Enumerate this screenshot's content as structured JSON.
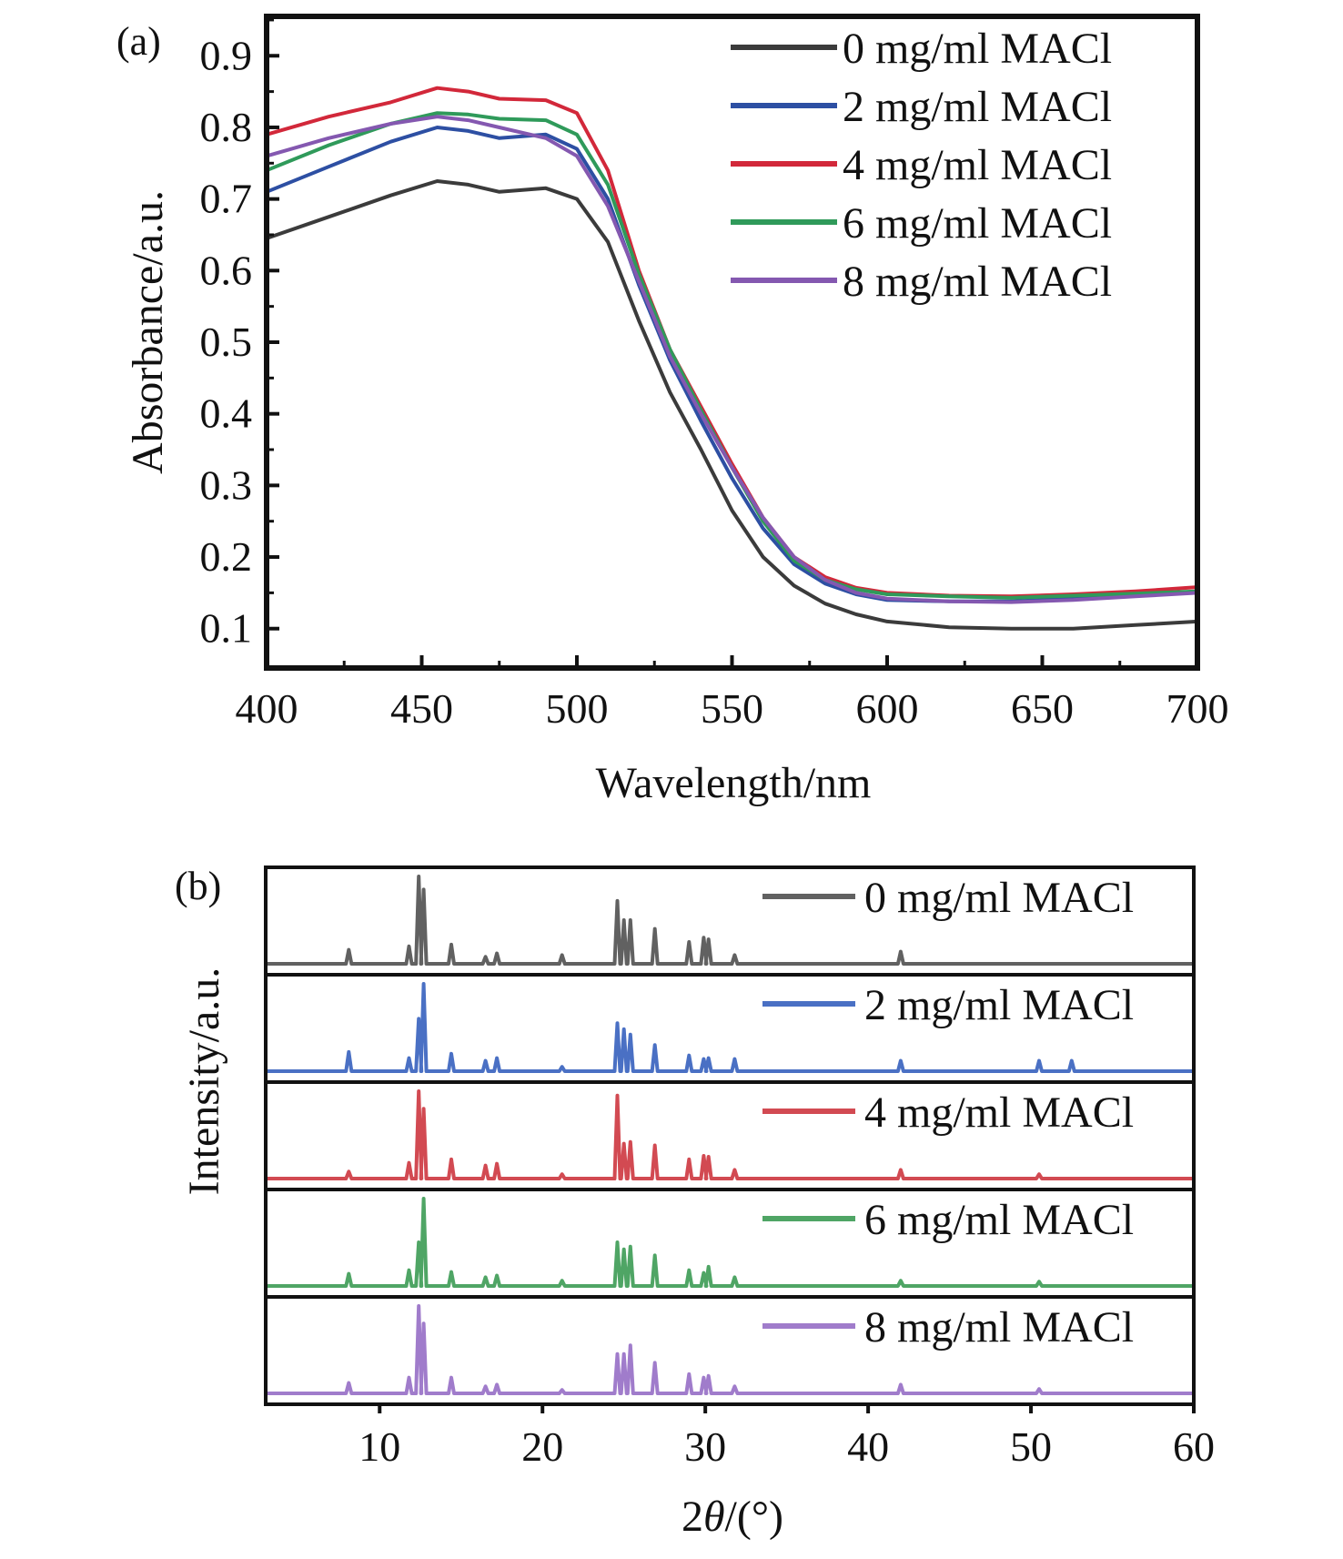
{
  "chart_data": [
    {
      "type": "line",
      "panel_label": "(a)",
      "xlabel": "Wavelength/nm",
      "ylabel": "Absorbance/a.u.",
      "xlim": [
        400,
        700
      ],
      "ylim": [
        0.045,
        0.955
      ],
      "x_ticks": [
        "400",
        "450",
        "500",
        "550",
        "600",
        "650",
        "700"
      ],
      "y_ticks": [
        "0.1",
        "0.2",
        "0.3",
        "0.4",
        "0.5",
        "0.6",
        "0.7",
        "0.8",
        "0.9"
      ],
      "legend_position": "top-right",
      "grid": false,
      "x": [
        400,
        420,
        440,
        455,
        465,
        475,
        490,
        500,
        510,
        520,
        530,
        540,
        550,
        560,
        570,
        580,
        590,
        600,
        620,
        640,
        660,
        680,
        700
      ],
      "series": [
        {
          "name": "0 mg/ml MACl",
          "color": "#3b3b3b",
          "values": [
            0.645,
            0.675,
            0.705,
            0.725,
            0.72,
            0.71,
            0.715,
            0.7,
            0.64,
            0.53,
            0.43,
            0.35,
            0.265,
            0.2,
            0.16,
            0.135,
            0.12,
            0.11,
            0.102,
            0.1,
            0.1,
            0.105,
            0.11
          ]
        },
        {
          "name": "2 mg/ml MACl",
          "color": "#2d4fa3",
          "values": [
            0.71,
            0.745,
            0.78,
            0.8,
            0.795,
            0.785,
            0.79,
            0.77,
            0.7,
            0.58,
            0.475,
            0.39,
            0.31,
            0.24,
            0.19,
            0.163,
            0.148,
            0.14,
            0.138,
            0.138,
            0.142,
            0.146,
            0.152
          ]
        },
        {
          "name": "4 mg/ml MACl",
          "color": "#d2283a",
          "values": [
            0.79,
            0.815,
            0.835,
            0.855,
            0.85,
            0.84,
            0.838,
            0.82,
            0.74,
            0.6,
            0.49,
            0.41,
            0.33,
            0.255,
            0.2,
            0.172,
            0.157,
            0.15,
            0.146,
            0.145,
            0.148,
            0.152,
            0.158
          ]
        },
        {
          "name": "6 mg/ml MACl",
          "color": "#2f9a5a",
          "values": [
            0.74,
            0.775,
            0.805,
            0.82,
            0.818,
            0.812,
            0.81,
            0.79,
            0.72,
            0.595,
            0.49,
            0.405,
            0.325,
            0.25,
            0.195,
            0.168,
            0.155,
            0.148,
            0.145,
            0.143,
            0.146,
            0.149,
            0.152
          ]
        },
        {
          "name": "8 mg/ml MACl",
          "color": "#8458b0",
          "values": [
            0.76,
            0.785,
            0.805,
            0.815,
            0.81,
            0.8,
            0.785,
            0.76,
            0.69,
            0.585,
            0.48,
            0.4,
            0.325,
            0.255,
            0.2,
            0.168,
            0.15,
            0.142,
            0.138,
            0.137,
            0.14,
            0.145,
            0.15
          ]
        }
      ]
    },
    {
      "type": "line",
      "panel_label": "(b)",
      "xlabel": "2θ/(°)",
      "xlabel_prefix": "2",
      "xlabel_symbol": "θ",
      "xlabel_suffix": "/(°)",
      "ylabel": "Intensity/a.u.",
      "xlim": [
        3,
        60
      ],
      "x_ticks": [
        "10",
        "20",
        "30",
        "40",
        "50",
        "60"
      ],
      "legend_position": "top-right",
      "grid": false,
      "peak_positions": [
        8.1,
        11.8,
        12.4,
        12.7,
        14.4,
        16.5,
        17.2,
        21.2,
        24.6,
        25.0,
        25.4,
        26.9,
        29.0,
        29.9,
        30.2,
        31.8,
        42.0,
        50.5,
        52.5
      ],
      "series": [
        {
          "name": "0 mg/ml MACl",
          "color": "#616161",
          "intensities": [
            0.16,
            0.2,
            1.0,
            0.85,
            0.22,
            0.08,
            0.12,
            0.1,
            0.72,
            0.5,
            0.5,
            0.4,
            0.25,
            0.3,
            0.28,
            0.1,
            0.14,
            0.0,
            0.0
          ]
        },
        {
          "name": "2 mg/ml MACl",
          "color": "#4a70c4",
          "intensities": [
            0.22,
            0.15,
            0.6,
            1.0,
            0.2,
            0.12,
            0.15,
            0.05,
            0.55,
            0.48,
            0.42,
            0.3,
            0.18,
            0.14,
            0.15,
            0.14,
            0.12,
            0.12,
            0.12
          ]
        },
        {
          "name": "4 mg/ml MACl",
          "color": "#d24a52",
          "intensities": [
            0.08,
            0.18,
            1.0,
            0.8,
            0.22,
            0.15,
            0.17,
            0.05,
            0.95,
            0.4,
            0.42,
            0.38,
            0.22,
            0.26,
            0.25,
            0.1,
            0.1,
            0.05,
            0.0
          ]
        },
        {
          "name": "6 mg/ml MACl",
          "color": "#4fa565",
          "intensities": [
            0.14,
            0.18,
            0.5,
            1.0,
            0.16,
            0.1,
            0.12,
            0.06,
            0.5,
            0.42,
            0.45,
            0.35,
            0.18,
            0.15,
            0.22,
            0.1,
            0.06,
            0.05,
            0.0
          ]
        },
        {
          "name": "8 mg/ml MACl",
          "color": "#a07ccb",
          "intensities": [
            0.12,
            0.18,
            1.0,
            0.8,
            0.18,
            0.08,
            0.1,
            0.04,
            0.45,
            0.45,
            0.55,
            0.35,
            0.22,
            0.18,
            0.2,
            0.08,
            0.1,
            0.05,
            0.0
          ]
        }
      ]
    }
  ]
}
